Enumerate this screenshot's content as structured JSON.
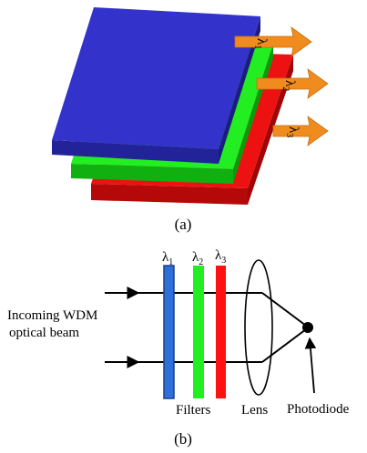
{
  "panel_a": {
    "caption": "(a)",
    "arrow_labels": [
      {
        "symbol": "λ",
        "sub": "1"
      },
      {
        "symbol": "λ",
        "sub": "2"
      },
      {
        "symbol": "λ",
        "sub": "3"
      }
    ],
    "colors": {
      "blue": "#3333cc",
      "green": "#22ee22",
      "red": "#ee1111",
      "arrow": "#f08c1e"
    }
  },
  "panel_b": {
    "caption": "(b)",
    "input_label_line1": "Incoming WDM",
    "input_label_line2": "optical beam",
    "filter_labels": [
      {
        "symbol": "λ",
        "sub": "1"
      },
      {
        "symbol": "λ",
        "sub": "2"
      },
      {
        "symbol": "λ",
        "sub": "3"
      }
    ],
    "filters_label": "Filters",
    "lens_label": "Lens",
    "detector_label": "Photodiode",
    "colors": {
      "filter1": "#2e6fd8",
      "filter2": "#22ee22",
      "filter3": "#ff1111"
    }
  }
}
